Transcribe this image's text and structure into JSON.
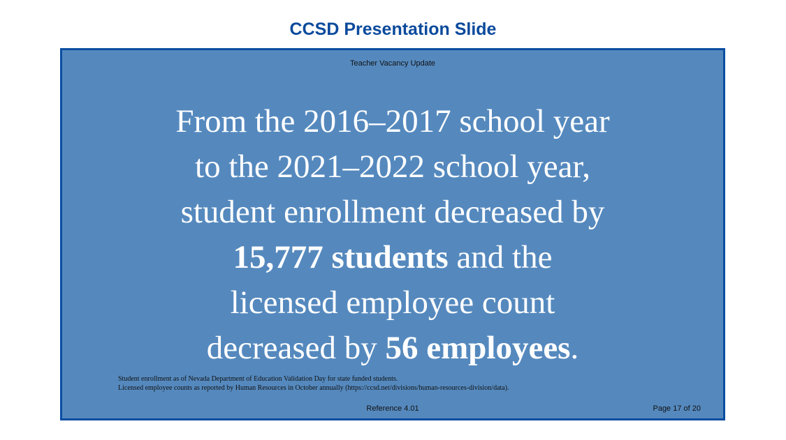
{
  "page": {
    "header": "CCSD Presentation Slide"
  },
  "slide": {
    "title": "Teacher Vacancy Update",
    "statement": {
      "line1": "From the 2016–2017 school year",
      "line2": "to the 2021–2022 school year,",
      "line3": "student enrollment decreased by",
      "line4_bold": "15,777 students",
      "line4_rest": " and the",
      "line5": "licensed employee count",
      "line6_pre": "decreased by ",
      "line6_bold": "56 employees",
      "line6_post": "."
    },
    "footnotes": [
      "Student enrollment as of Nevada Department of Education Validation Day for state funded students.",
      "Licensed employee counts as reported by Human Resources in October annually (https://ccsd.net/divisions/human-resources-division/data)."
    ],
    "reference": "Reference 4.01",
    "page_number": "Page 17 of 20"
  },
  "colors": {
    "header_text": "#0b4a9c",
    "slide_background": "#5589be",
    "slide_border": "#0b4ea2",
    "statement_text": "#ffffff"
  }
}
